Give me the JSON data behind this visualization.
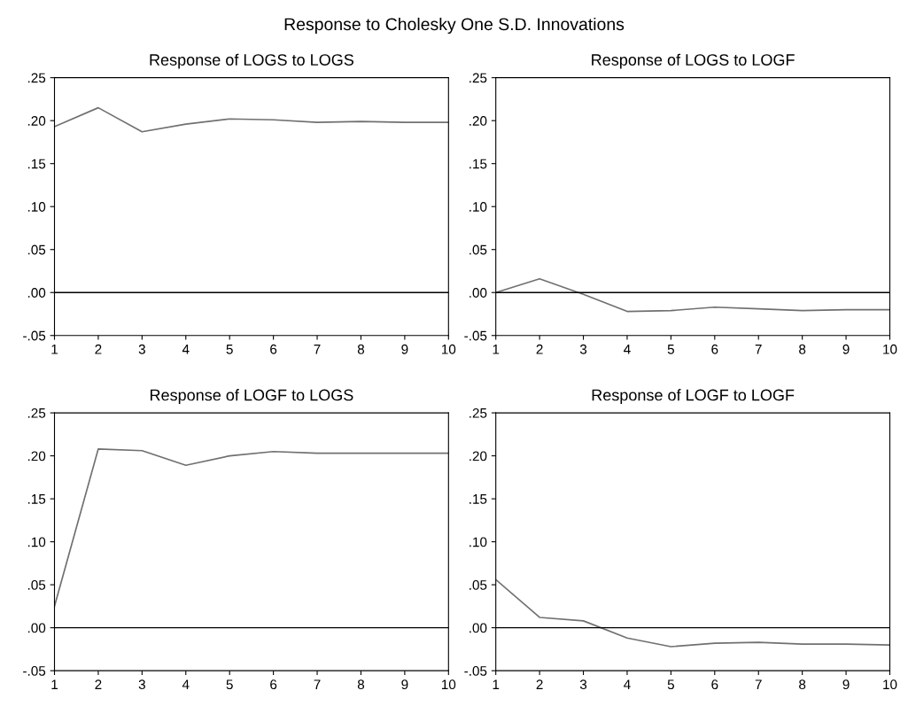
{
  "chart_data": [
    {
      "type": "line",
      "title": "Response of LOGS to LOGS",
      "annotations": [
        "Response to Cholesky One S.D. Innovations"
      ],
      "x": [
        1,
        2,
        3,
        4,
        5,
        6,
        7,
        8,
        9,
        10
      ],
      "series": [
        {
          "color": "#707070",
          "values": [
            0.193,
            0.215,
            0.187,
            0.196,
            0.202,
            0.201,
            0.198,
            0.199,
            0.198,
            0.198
          ]
        }
      ],
      "xlim": [
        1,
        10
      ],
      "xticks": [
        1,
        2,
        3,
        4,
        5,
        6,
        7,
        8,
        9,
        10
      ],
      "ylim": [
        -0.05,
        0.25
      ],
      "yticks": [
        {
          "value": -0.05,
          "label": "-.05"
        },
        {
          "value": 0,
          "label": ".00"
        },
        {
          "value": 0.05,
          "label": ".05"
        },
        {
          "value": 0.1,
          "label": ".10"
        },
        {
          "value": 0.15,
          "label": ".15"
        },
        {
          "value": 0.2,
          "label": ".20"
        },
        {
          "value": 0.25,
          "label": ".25"
        }
      ],
      "ref_lines": [
        {
          "axis": "y",
          "value": 0,
          "color": "#000000"
        }
      ]
    },
    {
      "type": "line",
      "title": "Response of LOGS to LOGF",
      "x": [
        1,
        2,
        3,
        4,
        5,
        6,
        7,
        8,
        9,
        10
      ],
      "series": [
        {
          "color": "#707070",
          "values": [
            0.0,
            0.016,
            -0.002,
            -0.022,
            -0.021,
            -0.017,
            -0.019,
            -0.021,
            -0.02,
            -0.02
          ]
        }
      ],
      "xlim": [
        1,
        10
      ],
      "xticks": [
        1,
        2,
        3,
        4,
        5,
        6,
        7,
        8,
        9,
        10
      ],
      "ylim": [
        -0.05,
        0.25
      ],
      "yticks": [
        {
          "value": -0.05,
          "label": "-.05"
        },
        {
          "value": 0,
          "label": ".00"
        },
        {
          "value": 0.05,
          "label": ".05"
        },
        {
          "value": 0.1,
          "label": ".10"
        },
        {
          "value": 0.15,
          "label": ".15"
        },
        {
          "value": 0.2,
          "label": ".20"
        },
        {
          "value": 0.25,
          "label": ".25"
        }
      ],
      "ref_lines": [
        {
          "axis": "y",
          "value": 0,
          "color": "#000000"
        }
      ]
    },
    {
      "type": "line",
      "title": "Response of LOGF to LOGS",
      "x": [
        1,
        2,
        3,
        4,
        5,
        6,
        7,
        8,
        9,
        10
      ],
      "series": [
        {
          "color": "#707070",
          "values": [
            0.025,
            0.208,
            0.206,
            0.189,
            0.2,
            0.205,
            0.203,
            0.203,
            0.203,
            0.203
          ]
        }
      ],
      "xlim": [
        1,
        10
      ],
      "xticks": [
        1,
        2,
        3,
        4,
        5,
        6,
        7,
        8,
        9,
        10
      ],
      "ylim": [
        -0.05,
        0.25
      ],
      "yticks": [
        {
          "value": -0.05,
          "label": "-.05"
        },
        {
          "value": 0,
          "label": ".00"
        },
        {
          "value": 0.05,
          "label": ".05"
        },
        {
          "value": 0.1,
          "label": ".10"
        },
        {
          "value": 0.15,
          "label": ".15"
        },
        {
          "value": 0.2,
          "label": ".20"
        },
        {
          "value": 0.25,
          "label": ".25"
        }
      ],
      "ref_lines": [
        {
          "axis": "y",
          "value": 0,
          "color": "#000000"
        }
      ]
    },
    {
      "type": "line",
      "title": "Response of LOGF to LOGF",
      "x": [
        1,
        2,
        3,
        4,
        5,
        6,
        7,
        8,
        9,
        10
      ],
      "series": [
        {
          "color": "#707070",
          "values": [
            0.056,
            0.012,
            0.008,
            -0.012,
            -0.022,
            -0.018,
            -0.017,
            -0.019,
            -0.019,
            -0.02
          ]
        }
      ],
      "xlim": [
        1,
        10
      ],
      "xticks": [
        1,
        2,
        3,
        4,
        5,
        6,
        7,
        8,
        9,
        10
      ],
      "ylim": [
        -0.05,
        0.25
      ],
      "yticks": [
        {
          "value": -0.05,
          "label": "-.05"
        },
        {
          "value": 0,
          "label": ".00"
        },
        {
          "value": 0.05,
          "label": ".05"
        },
        {
          "value": 0.1,
          "label": ".10"
        },
        {
          "value": 0.15,
          "label": ".15"
        },
        {
          "value": 0.2,
          "label": ".20"
        },
        {
          "value": 0.25,
          "label": ".25"
        }
      ],
      "ref_lines": [
        {
          "axis": "y",
          "value": 0,
          "color": "#000000"
        }
      ]
    }
  ]
}
